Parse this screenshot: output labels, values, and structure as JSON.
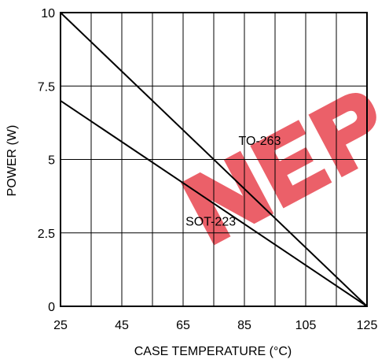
{
  "chart_data": {
    "type": "line",
    "title": "",
    "xlabel": "CASE TEMPERATURE (°C)",
    "ylabel": "POWER (W)",
    "xlim": [
      25,
      125
    ],
    "ylim": [
      0,
      10
    ],
    "x_ticks": [
      25,
      45,
      65,
      85,
      105,
      125
    ],
    "x_tick_labels": [
      "25",
      "45",
      "65",
      "85",
      "105",
      "125"
    ],
    "y_ticks": [
      0,
      2.5,
      5,
      7.5,
      10
    ],
    "y_tick_labels": [
      "0",
      "2.5",
      "5",
      "7.5",
      "10"
    ],
    "x_minor_grid_step": 10,
    "grid": true,
    "series": [
      {
        "name": "TO-263",
        "x": [
          25,
          125
        ],
        "y": [
          10,
          0
        ]
      },
      {
        "name": "SOT-223",
        "x": [
          25,
          125
        ],
        "y": [
          7,
          0
        ]
      }
    ],
    "series_label_positions": [
      {
        "series": "TO-263",
        "x": 90,
        "y": 5.5
      },
      {
        "series": "SOT-223",
        "x": 74,
        "y": 2.75
      }
    ],
    "watermark": {
      "text": "NEP",
      "color": "#e8454f",
      "opacity": 0.85
    },
    "colors": {
      "line": "#000000",
      "grid": "#000000"
    }
  }
}
